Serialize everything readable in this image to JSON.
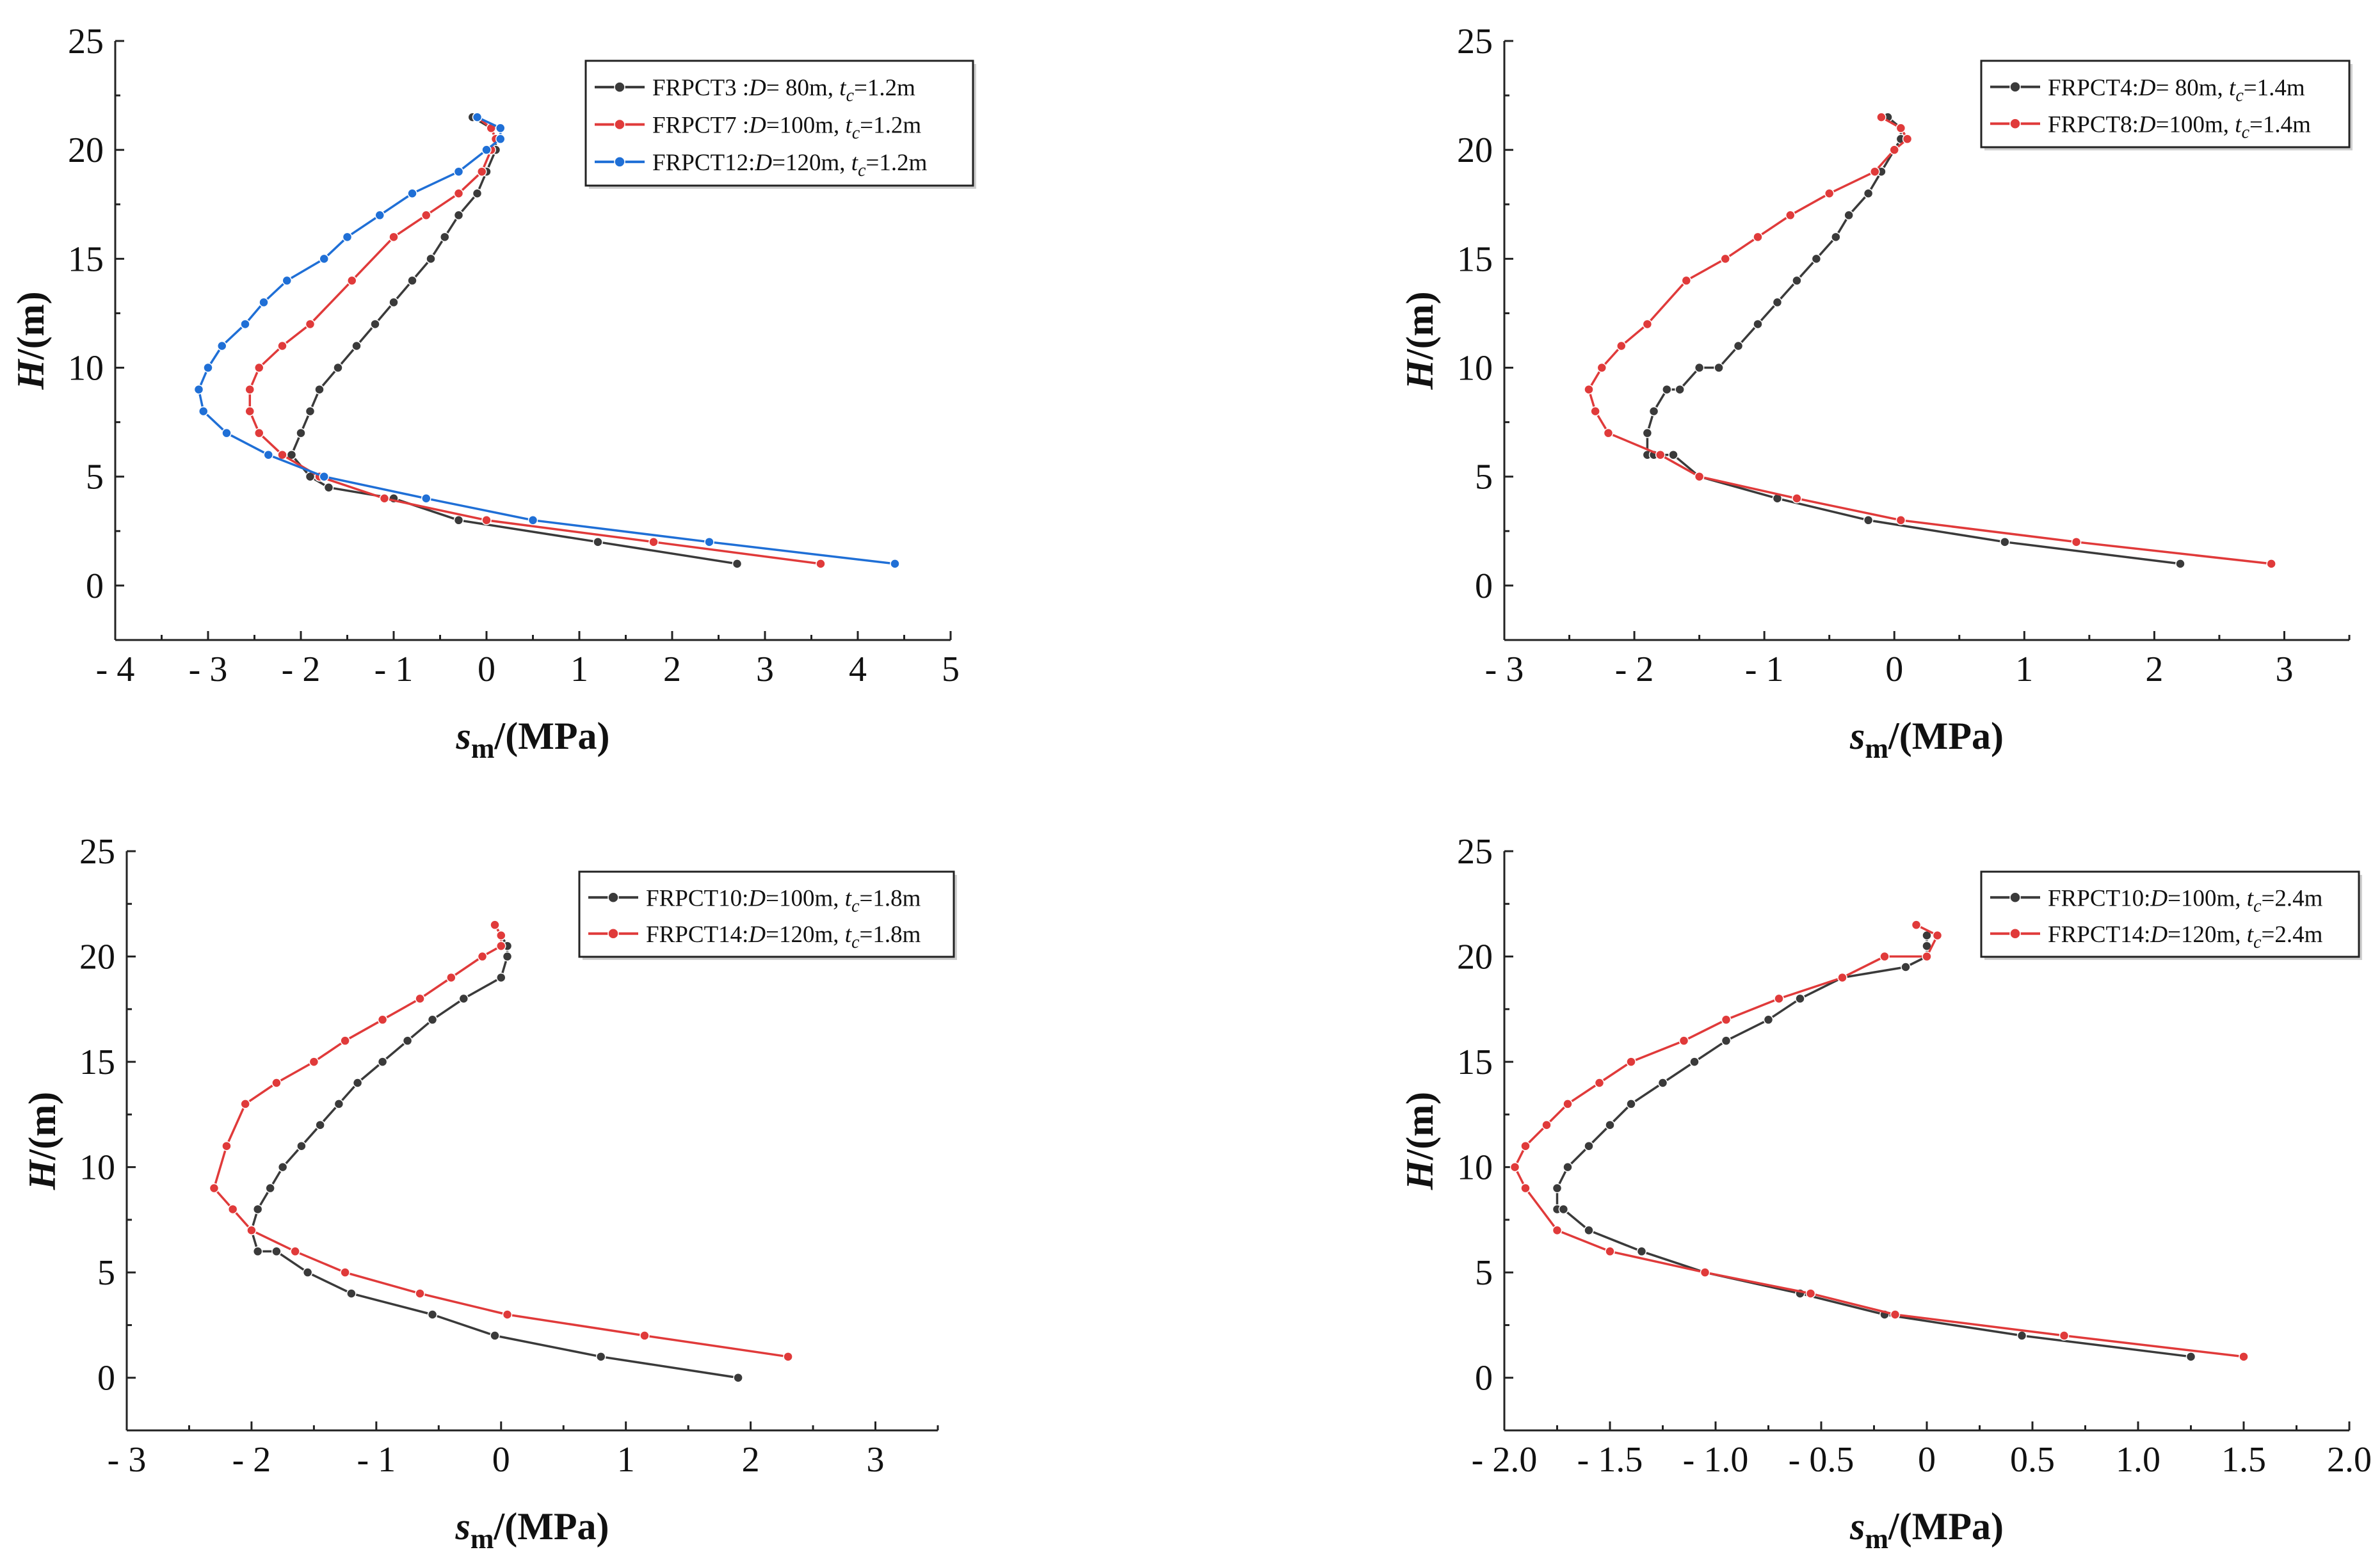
{
  "chart_data": [
    {
      "type": "line",
      "ylabel_main": "H",
      "ylabel_rest": "/(m)",
      "xlabel_main": "s",
      "xlabel_sub": "m",
      "xlabel_rest": "/(MPa)",
      "xlim": [
        -4,
        5
      ],
      "ylim": [
        -2.5,
        25
      ],
      "xticks": [
        -4,
        -3,
        -2,
        -1,
        0,
        1,
        2,
        3,
        4,
        5
      ],
      "xtick_labels": [
        "- 4",
        "- 3",
        "- 2",
        "- 1",
        "0",
        "1",
        "2",
        "3",
        "4",
        "5"
      ],
      "yticks": [
        0,
        5,
        10,
        15,
        20,
        25
      ],
      "ytick_labels": [
        "0",
        "5",
        "10",
        "15",
        "20",
        "25"
      ],
      "legend_position": "top-right",
      "series": [
        {
          "name": "FRPCT3",
          "legend_label": {
            "pre": "FRPCT3 :",
            "D_italic": "D",
            "mid": "= 80m, ",
            "t_italic": "t",
            "t_sub": "c",
            "post": "=1.2m"
          },
          "color": "#3a3a3a",
          "marker": "circle",
          "x": [
            -0.15,
            0.05,
            0.1,
            0.1,
            0.0,
            -0.1,
            -0.3,
            -0.45,
            -0.6,
            -0.8,
            -1.0,
            -1.2,
            -1.4,
            -1.6,
            -1.8,
            -1.9,
            -2.0,
            -2.1,
            -2.1,
            -1.9,
            -1.7,
            -1.0,
            -0.3,
            1.2,
            2.7
          ],
          "y": [
            21.5,
            21.0,
            20.5,
            20.0,
            19.0,
            18.0,
            17.0,
            16.0,
            15.0,
            14.0,
            13.0,
            12.0,
            11.0,
            10.0,
            9.0,
            8.0,
            7.0,
            6.0,
            6.0,
            5.0,
            4.5,
            4.0,
            3.0,
            2.0,
            1.0
          ]
        },
        {
          "name": "FRPCT7",
          "legend_label": {
            "pre": "FRPCT7 :",
            "D_italic": "D",
            "mid": "=100m, ",
            "t_italic": "t",
            "t_sub": "c",
            "post": "=1.2m"
          },
          "color": "#e03a3a",
          "marker": "circle",
          "x": [
            -0.1,
            0.05,
            0.1,
            0.05,
            -0.05,
            -0.3,
            -0.65,
            -1.0,
            -1.45,
            -1.9,
            -2.2,
            -2.45,
            -2.55,
            -2.55,
            -2.45,
            -2.2,
            -1.8,
            -1.1,
            0.0,
            1.8,
            3.6
          ],
          "y": [
            21.5,
            21.0,
            20.5,
            20.0,
            19.0,
            18.0,
            17.0,
            16.0,
            14.0,
            12.0,
            11.0,
            10.0,
            9.0,
            8.0,
            7.0,
            6.0,
            5.0,
            4.0,
            3.0,
            2.0,
            1.0
          ]
        },
        {
          "name": "FRPCT12",
          "legend_label": {
            "pre": "FRPCT12:",
            "D_italic": "D",
            "mid": "=120m, ",
            "t_italic": "t",
            "t_sub": "c",
            "post": "=1.2m"
          },
          "color": "#1f6fd6",
          "marker": "circle",
          "x": [
            -0.1,
            0.15,
            0.15,
            0.0,
            -0.3,
            -0.8,
            -1.15,
            -1.5,
            -1.75,
            -2.15,
            -2.4,
            -2.6,
            -2.85,
            -3.0,
            -3.1,
            -3.05,
            -2.8,
            -2.35,
            -1.75,
            -0.65,
            0.5,
            2.4,
            4.4
          ],
          "y": [
            21.5,
            21.0,
            20.5,
            20.0,
            19.0,
            18.0,
            17.0,
            16.0,
            15.0,
            14.0,
            13.0,
            12.0,
            11.0,
            10.0,
            9.0,
            8.0,
            7.0,
            6.0,
            5.0,
            4.0,
            3.0,
            2.0,
            1.0
          ]
        }
      ]
    },
    {
      "type": "line",
      "ylabel_main": "H",
      "ylabel_rest": "/(m)",
      "xlabel_main": "s",
      "xlabel_sub": "m",
      "xlabel_rest": "/(MPa)",
      "xlim": [
        -3,
        3.5
      ],
      "ylim": [
        -2.5,
        25
      ],
      "xticks": [
        -3,
        -2,
        -1,
        0,
        1,
        2,
        3
      ],
      "xtick_labels": [
        "- 3",
        "- 2",
        "- 1",
        "0",
        "1",
        "2",
        "3"
      ],
      "yticks": [
        0,
        5,
        10,
        15,
        20,
        25
      ],
      "ytick_labels": [
        "0",
        "5",
        "10",
        "15",
        "20",
        "25"
      ],
      "legend_position": "top-right",
      "series": [
        {
          "name": "FRPCT4",
          "legend_label": {
            "pre": "FRPCT4:",
            "D_italic": "D",
            "mid": "= 80m, ",
            "t_italic": "t",
            "t_sub": "c",
            "post": "=1.4m"
          },
          "color": "#3a3a3a",
          "marker": "circle",
          "x": [
            -0.05,
            0.05,
            0.05,
            0.0,
            -0.1,
            -0.2,
            -0.35,
            -0.45,
            -0.6,
            -0.75,
            -0.9,
            -1.05,
            -1.2,
            -1.35,
            -1.5,
            -1.65,
            -1.75,
            -1.85,
            -1.9,
            -1.9,
            -1.85,
            -1.7,
            -1.5,
            -0.9,
            -0.2,
            0.85,
            2.2
          ],
          "y": [
            21.5,
            21.0,
            20.5,
            20.0,
            19.0,
            18.0,
            17.0,
            16.0,
            15.0,
            14.0,
            13.0,
            12.0,
            11.0,
            10.0,
            10.0,
            9.0,
            9.0,
            8.0,
            7.0,
            6.0,
            6.0,
            6.0,
            5.0,
            4.0,
            3.0,
            2.0,
            1.0
          ]
        },
        {
          "name": "FRPCT8",
          "legend_label": {
            "pre": "FRPCT8:",
            "D_italic": "D",
            "mid": "=100m, ",
            "t_italic": "t",
            "t_sub": "c",
            "post": "=1.4m"
          },
          "color": "#e03a3a",
          "marker": "circle",
          "x": [
            -0.1,
            0.05,
            0.1,
            0.0,
            -0.15,
            -0.5,
            -0.8,
            -1.05,
            -1.3,
            -1.6,
            -1.9,
            -2.1,
            -2.25,
            -2.35,
            -2.3,
            -2.2,
            -1.8,
            -1.5,
            -0.75,
            0.05,
            1.4,
            2.9
          ],
          "y": [
            21.5,
            21.0,
            20.5,
            20.0,
            19.0,
            18.0,
            17.0,
            16.0,
            15.0,
            14.0,
            12.0,
            11.0,
            10.0,
            9.0,
            8.0,
            7.0,
            6.0,
            5.0,
            4.0,
            3.0,
            2.0,
            1.0
          ]
        }
      ]
    },
    {
      "type": "line",
      "ylabel_main": "H",
      "ylabel_rest": "/(m)",
      "xlabel_main": "s",
      "xlabel_sub": "m",
      "xlabel_rest": "/(MPa)",
      "xlim": [
        -3,
        3.5
      ],
      "ylim": [
        -2.5,
        25
      ],
      "xticks": [
        -3,
        -2,
        -1,
        0,
        1,
        2,
        3
      ],
      "xtick_labels": [
        "- 3",
        "- 2",
        "- 1",
        "0",
        "1",
        "2",
        "3"
      ],
      "yticks": [
        0,
        5,
        10,
        15,
        20,
        25
      ],
      "ytick_labels": [
        "0",
        "5",
        "10",
        "15",
        "20",
        "25"
      ],
      "legend_position": "top-right",
      "series": [
        {
          "name": "FRPCT10",
          "legend_label": {
            "pre": "FRPCT10:",
            "D_italic": "D",
            "mid": "=100m, ",
            "t_italic": "t",
            "t_sub": "c",
            "post": "=1.8m"
          },
          "color": "#3a3a3a",
          "marker": "circle",
          "x": [
            0.0,
            0.05,
            0.05,
            0.0,
            -0.3,
            -0.55,
            -0.75,
            -0.95,
            -1.15,
            -1.3,
            -1.45,
            -1.6,
            -1.75,
            -1.85,
            -1.95,
            -2.0,
            -1.95,
            -1.8,
            -1.55,
            -1.2,
            -0.55,
            -0.05,
            0.8,
            1.9
          ],
          "y": [
            21.0,
            20.5,
            20.0,
            19.0,
            18.0,
            17.0,
            16.0,
            15.0,
            14.0,
            13.0,
            12.0,
            11.0,
            10.0,
            9.0,
            8.0,
            7.0,
            6.0,
            6.0,
            5.0,
            4.0,
            3.0,
            2.0,
            1.0,
            0.0
          ]
        },
        {
          "name": "FRPCT14",
          "legend_label": {
            "pre": "FRPCT14:",
            "D_italic": "D",
            "mid": "=120m, ",
            "t_italic": "t",
            "t_sub": "c",
            "post": "=1.8m"
          },
          "color": "#e03a3a",
          "marker": "circle",
          "x": [
            -0.05,
            0.0,
            0.0,
            -0.15,
            -0.4,
            -0.65,
            -0.95,
            -1.25,
            -1.5,
            -1.8,
            -2.05,
            -2.2,
            -2.3,
            -2.15,
            -2.0,
            -1.65,
            -1.25,
            -0.65,
            0.05,
            1.15,
            2.3
          ],
          "y": [
            21.5,
            21.0,
            20.5,
            20.0,
            19.0,
            18.0,
            17.0,
            16.0,
            15.0,
            14.0,
            13.0,
            11.0,
            9.0,
            8.0,
            7.0,
            6.0,
            5.0,
            4.0,
            3.0,
            2.0,
            1.0
          ]
        }
      ]
    },
    {
      "type": "line",
      "ylabel_main": "H",
      "ylabel_rest": "/(m)",
      "xlabel_main": "s",
      "xlabel_sub": "m",
      "xlabel_rest": "/(MPa)",
      "xlim": [
        -2.0,
        2.0
      ],
      "ylim": [
        -2.5,
        25
      ],
      "xticks": [
        -2.0,
        -1.5,
        -1.0,
        -0.5,
        0,
        0.5,
        1.0,
        1.5,
        2.0
      ],
      "xtick_labels": [
        "- 2.0",
        "- 1.5",
        "- 1.0",
        "- 0.5",
        "0",
        "0.5",
        "1.0",
        "1.5",
        "2.0"
      ],
      "yticks": [
        0,
        5,
        10,
        15,
        20,
        25
      ],
      "ytick_labels": [
        "0",
        "5",
        "10",
        "15",
        "20",
        "25"
      ],
      "legend_position": "top-right",
      "series": [
        {
          "name": "FRPCT10",
          "legend_label": {
            "pre": "FRPCT10:",
            "D_italic": "D",
            "mid": "=100m, ",
            "t_italic": "t",
            "t_sub": "c",
            "post": "=2.4m"
          },
          "color": "#3a3a3a",
          "marker": "circle",
          "x": [
            0.0,
            0.0,
            0.0,
            -0.1,
            -0.4,
            -0.6,
            -0.75,
            -0.95,
            -1.1,
            -1.25,
            -1.4,
            -1.5,
            -1.6,
            -1.7,
            -1.75,
            -1.75,
            -1.72,
            -1.6,
            -1.35,
            -1.05,
            -0.6,
            -0.2,
            0.45,
            1.25
          ],
          "y": [
            21.0,
            20.5,
            20.0,
            19.5,
            19.0,
            18.0,
            17.0,
            16.0,
            15.0,
            14.0,
            13.0,
            12.0,
            11.0,
            10.0,
            9.0,
            8.0,
            8.0,
            7.0,
            6.0,
            5.0,
            4.0,
            3.0,
            2.0,
            1.0
          ]
        },
        {
          "name": "FRPCT14",
          "legend_label": {
            "pre": "FRPCT14:",
            "D_italic": "D",
            "mid": "=120m, ",
            "t_italic": "t",
            "t_sub": "c",
            "post": "=2.4m"
          },
          "color": "#e03a3a",
          "marker": "circle",
          "x": [
            -0.05,
            0.05,
            0.0,
            -0.2,
            -0.4,
            -0.7,
            -0.95,
            -1.15,
            -1.4,
            -1.55,
            -1.7,
            -1.8,
            -1.9,
            -1.95,
            -1.9,
            -1.75,
            -1.5,
            -1.05,
            -0.55,
            -0.15,
            0.65,
            1.5
          ],
          "y": [
            21.5,
            21.0,
            20.0,
            20.0,
            19.0,
            18.0,
            17.0,
            16.0,
            15.0,
            14.0,
            13.0,
            12.0,
            11.0,
            10.0,
            9.0,
            7.0,
            6.0,
            5.0,
            4.0,
            3.0,
            2.0,
            1.0
          ]
        }
      ]
    }
  ]
}
